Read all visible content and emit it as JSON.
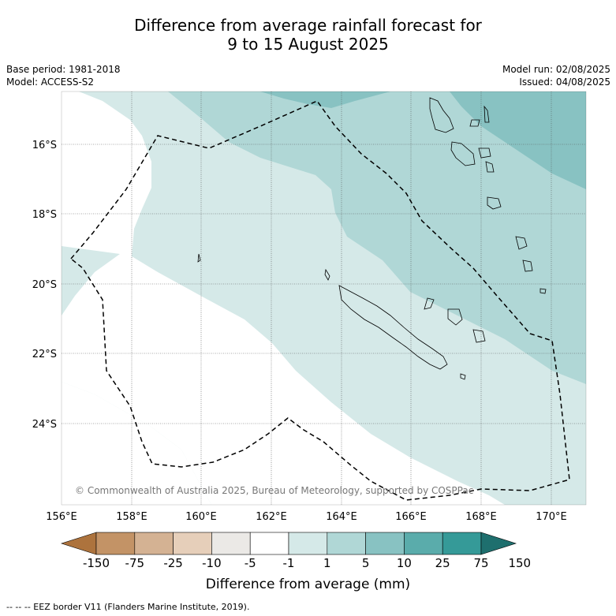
{
  "title_line1": "Difference from average rainfall forecast for",
  "title_line2": "9 to 15 August 2025",
  "base_period": "Base period: 1981-2018",
  "model": "Model: ACCESS-S2",
  "model_run": "Model run: 02/08/2025",
  "issued": "Issued: 04/08/2025",
  "copyright": "© Commonwealth of Australia 2025, Bureau of Meteorology, supported by COSPPac",
  "lon_labels": [
    "156°E",
    "158°E",
    "160°E",
    "162°E",
    "164°E",
    "166°E",
    "168°E",
    "170°E"
  ],
  "lat_labels": [
    "16°S",
    "18°S",
    "20°S",
    "22°S",
    "24°S"
  ],
  "colorbar": {
    "title": "Difference from average (mm)",
    "labels": [
      "-150",
      "-75",
      "-25",
      "-10",
      "-5",
      "-1",
      "1",
      "5",
      "10",
      "25",
      "75",
      "150"
    ],
    "colors": [
      "#ad733d",
      "#c39366",
      "#d4b293",
      "#e6cfba",
      "#ebe9e6",
      "#ffffff",
      "#d5e9e8",
      "#b0d7d6",
      "#88c2c2",
      "#5aacab",
      "#359a98",
      "#1e6f6e"
    ]
  },
  "footer": "--  --  -- EEZ border V11 (Flanders Marine Institute, 2019)."
}
